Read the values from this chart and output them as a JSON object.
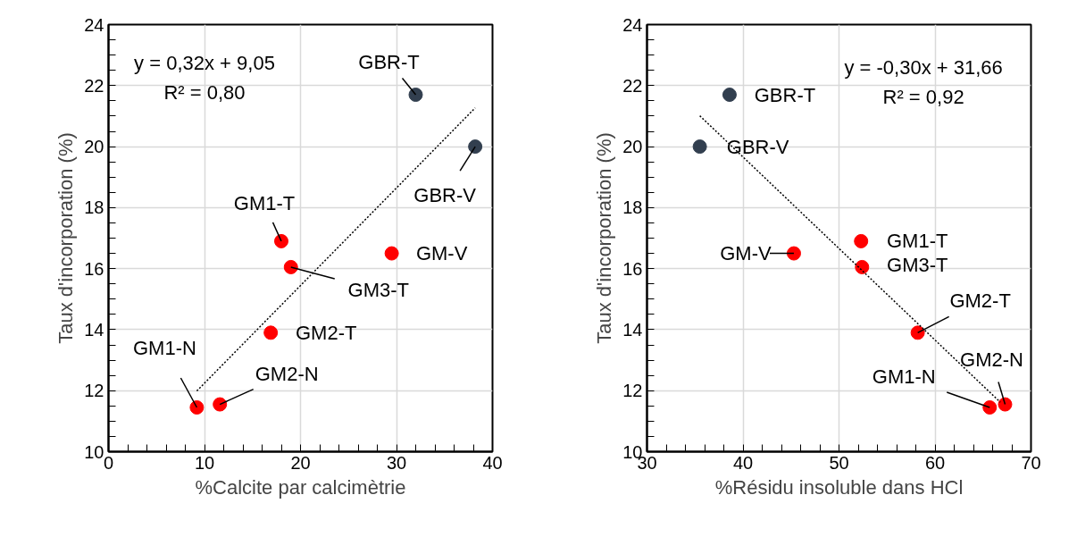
{
  "chart_data": [
    {
      "type": "scatter",
      "xlabel": "%Calcite par calcimètrie",
      "ylabel": "Taux d'incorporation (%)",
      "xlim": [
        0,
        40
      ],
      "ylim": [
        10,
        24
      ],
      "xticks": [
        0,
        10,
        20,
        30,
        40
      ],
      "yticks": [
        10,
        12,
        14,
        16,
        18,
        20,
        22,
        24
      ],
      "grid": true,
      "marker": "circle",
      "series": [
        {
          "color": "#323f4f",
          "x": [
            32.0,
            38.2
          ],
          "values": [
            21.7,
            20.0
          ]
        },
        {
          "color": "#ff0000",
          "x": [
            18.0,
            19.0,
            29.5,
            16.9,
            9.2,
            11.6
          ],
          "values": [
            16.9,
            16.05,
            16.5,
            13.9,
            11.45,
            11.55
          ]
        },
        {
          "type": "line",
          "color": "#000000",
          "line_style": "dotted",
          "marker": "none",
          "x": [
            9.2,
            38.2
          ],
          "values": [
            11.99,
            21.27
          ]
        }
      ],
      "annotations": [
        "y = 0,32x + 9,05",
        "R² = 0,80",
        {
          "text": "GBR-T",
          "x": 32.0,
          "y": 21.7
        },
        {
          "text": "GBR-V",
          "x": 38.2,
          "y": 20.0
        },
        {
          "text": "GM1-T",
          "x": 18.0,
          "y": 16.9
        },
        {
          "text": "GM3-T",
          "x": 19.0,
          "y": 16.05
        },
        {
          "text": "GM-V",
          "x": 29.5,
          "y": 16.5
        },
        {
          "text": "GM2-T",
          "x": 16.9,
          "y": 13.9
        },
        {
          "text": "GM1-N",
          "x": 9.2,
          "y": 11.45
        },
        {
          "text": "GM2-N",
          "x": 11.6,
          "y": 11.55
        }
      ]
    },
    {
      "type": "scatter",
      "xlabel": "%Résidu insoluble dans HCl",
      "ylabel": "Taux d'incorporation (%)",
      "xlim": [
        30,
        70
      ],
      "ylim": [
        10,
        24
      ],
      "xticks": [
        30,
        40,
        50,
        60,
        70
      ],
      "yticks": [
        10,
        12,
        14,
        16,
        18,
        20,
        22,
        24
      ],
      "grid": true,
      "marker": "circle",
      "series": [
        {
          "color": "#323f4f",
          "x": [
            38.6,
            35.5
          ],
          "values": [
            21.7,
            20.0
          ]
        },
        {
          "color": "#ff0000",
          "x": [
            45.3,
            52.3,
            52.4,
            58.2,
            65.7,
            67.3
          ],
          "values": [
            16.5,
            16.9,
            16.05,
            13.9,
            11.45,
            11.55
          ]
        },
        {
          "type": "line",
          "color": "#000000",
          "line_style": "dotted",
          "marker": "none",
          "x": [
            35.5,
            66.8
          ],
          "values": [
            21.01,
            11.62
          ]
        }
      ],
      "annotations": [
        "y = -0,30x + 31,66",
        "R² = 0,92",
        {
          "text": "GBR-T",
          "x": 38.6,
          "y": 21.7
        },
        {
          "text": "GBR-V",
          "x": 35.5,
          "y": 20.0
        },
        {
          "text": "GM-V",
          "x": 45.3,
          "y": 16.5
        },
        {
          "text": "GM1-T",
          "x": 52.3,
          "y": 16.9
        },
        {
          "text": "GM3-T",
          "x": 52.4,
          "y": 16.05
        },
        {
          "text": "GM2-T",
          "x": 58.2,
          "y": 13.9
        },
        {
          "text": "GM1-N",
          "x": 65.7,
          "y": 11.45
        },
        {
          "text": "GM2-N",
          "x": 67.3,
          "y": 11.55
        }
      ]
    }
  ]
}
